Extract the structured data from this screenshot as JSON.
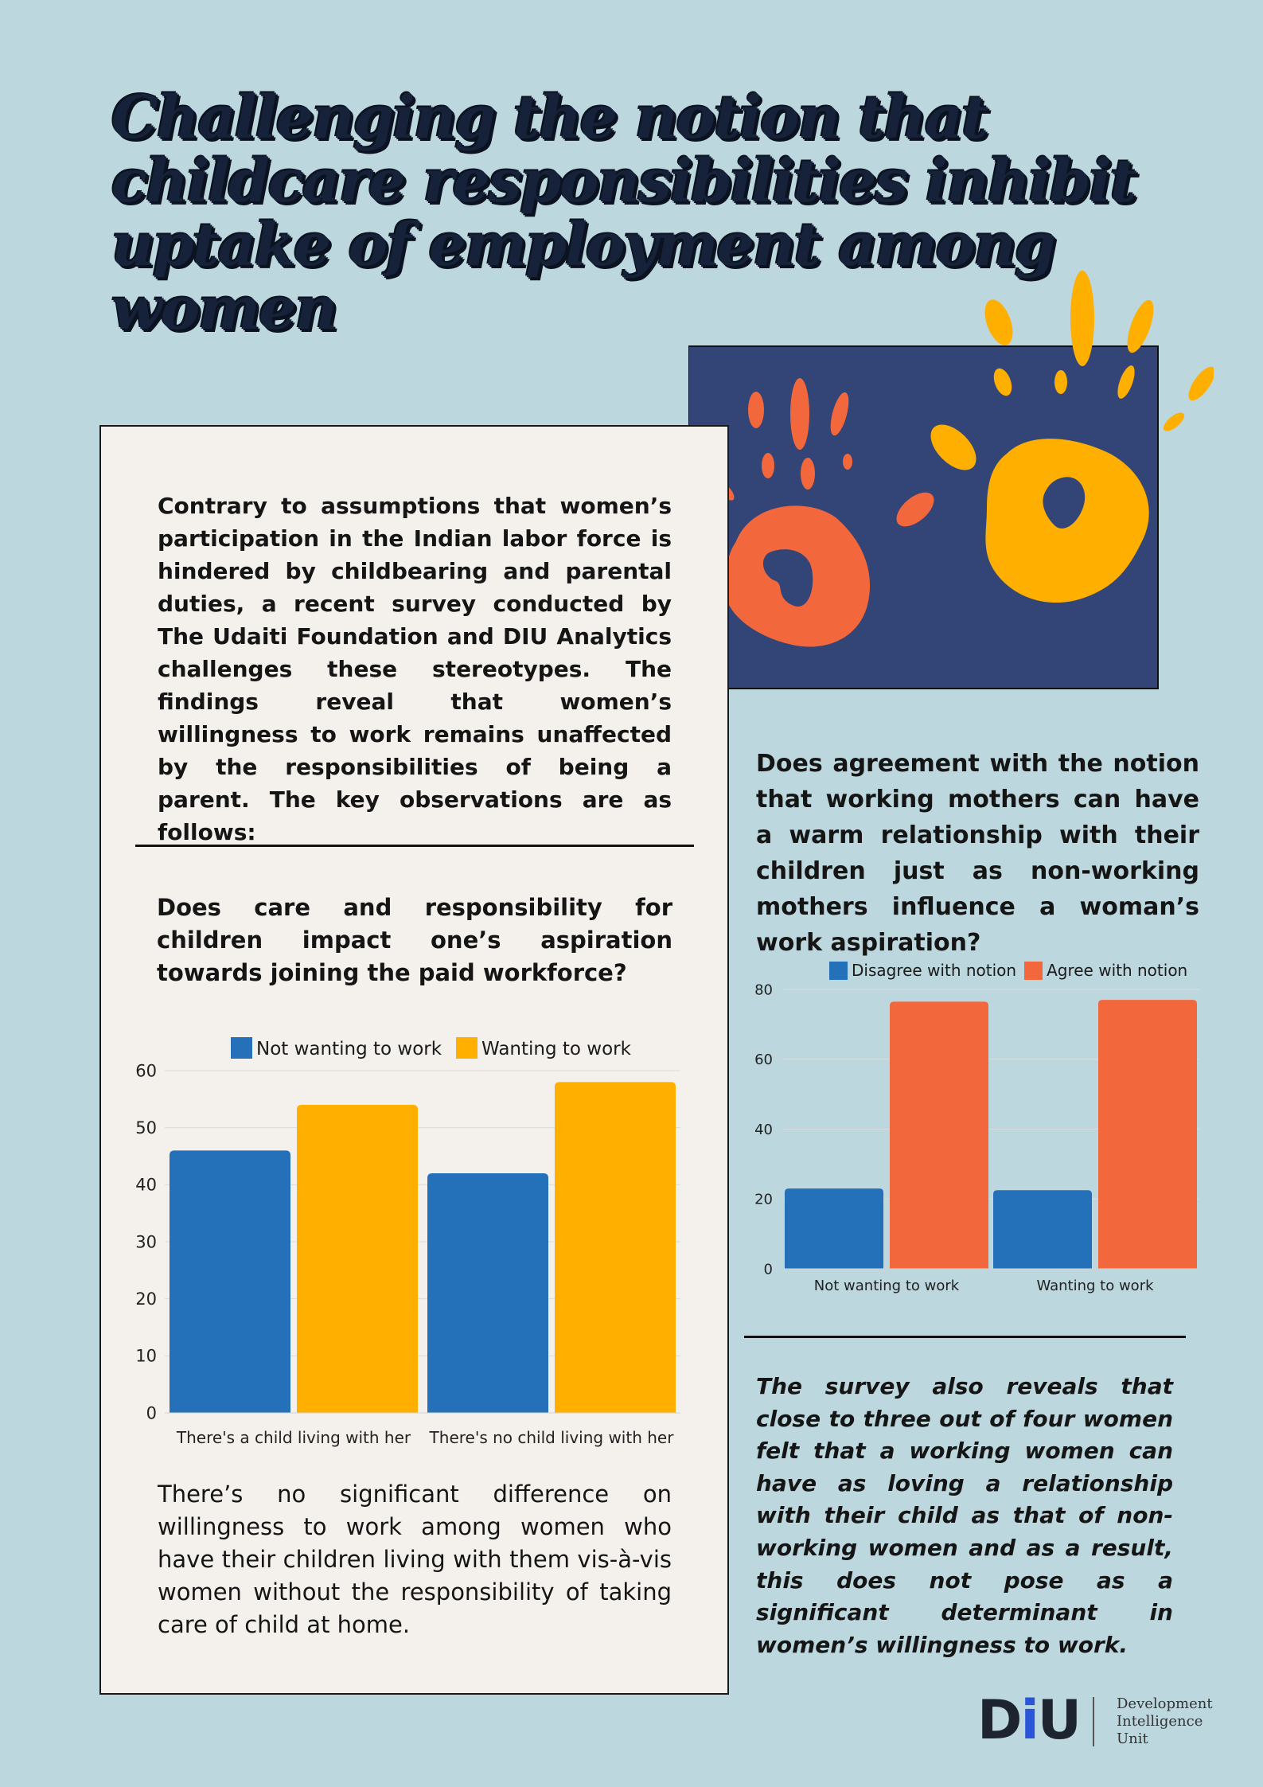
{
  "title": "Challenging the notion that childcare responsibilities inhibit uptake of employment among women",
  "intro": "Contrary to assumptions that women’s participation in the Indian labor force is hindered by childbearing and parental duties, a recent survey conducted by The Udaiti Foundation and DIU Analytics challenges these stereotypes. The findings reveal that women’s willingness to work remains unaffected by the responsibilities of being a parent. The key observations are as follows:",
  "question1": "Does care and responsibility for children impact one’s aspiration towards joining the paid workforce?",
  "note1": "There’s no significant difference on willingness to work among women who have their children living with them vis-à-vis women without the responsibility of taking care of child at home.",
  "question2": "Does agreement with the notion that working mothers can have a warm relationship with their children just as non-working mothers influence a woman’s work aspiration?",
  "note2": "The survey also reveals that close to three out of four women felt that a working women can have as loving a relationship with their child as that of non-working women and as a result, this does not pose as a significant determinant in women’s willingness to work.",
  "illustration": {
    "icon": "hand-prints-icon",
    "panel_color": "#334577",
    "hand1_color": "#f2673b",
    "hand2_color": "#ffaf00"
  },
  "logo": {
    "mark": [
      "D",
      "i",
      "U"
    ],
    "text": [
      "Development",
      "Intelligence",
      "Unit"
    ],
    "accent": "#2b55d8"
  },
  "chart_data": [
    {
      "type": "bar",
      "categories": [
        "There's a child living with her",
        "There's no child living with her"
      ],
      "series": [
        {
          "name": "Not wanting to work",
          "values": [
            46,
            42
          ],
          "color": "#2571b9"
        },
        {
          "name": "Wanting to work",
          "values": [
            54,
            58
          ],
          "color": "#ffaf00"
        }
      ],
      "yticks": [
        0,
        10,
        20,
        30,
        40,
        50,
        60
      ],
      "ylim": [
        0,
        60
      ],
      "grid": true,
      "legend": "top"
    },
    {
      "type": "bar",
      "categories": [
        "Not wanting to work",
        "Wanting to work"
      ],
      "series": [
        {
          "name": "Disagree with notion",
          "values": [
            23,
            22.5
          ],
          "color": "#2571b9"
        },
        {
          "name": "Agree with notion",
          "values": [
            76.5,
            77
          ],
          "color": "#f2673b"
        }
      ],
      "yticks": [
        0,
        20,
        40,
        60,
        80
      ],
      "ylim": [
        0,
        80
      ],
      "grid": true,
      "legend": "top"
    }
  ]
}
